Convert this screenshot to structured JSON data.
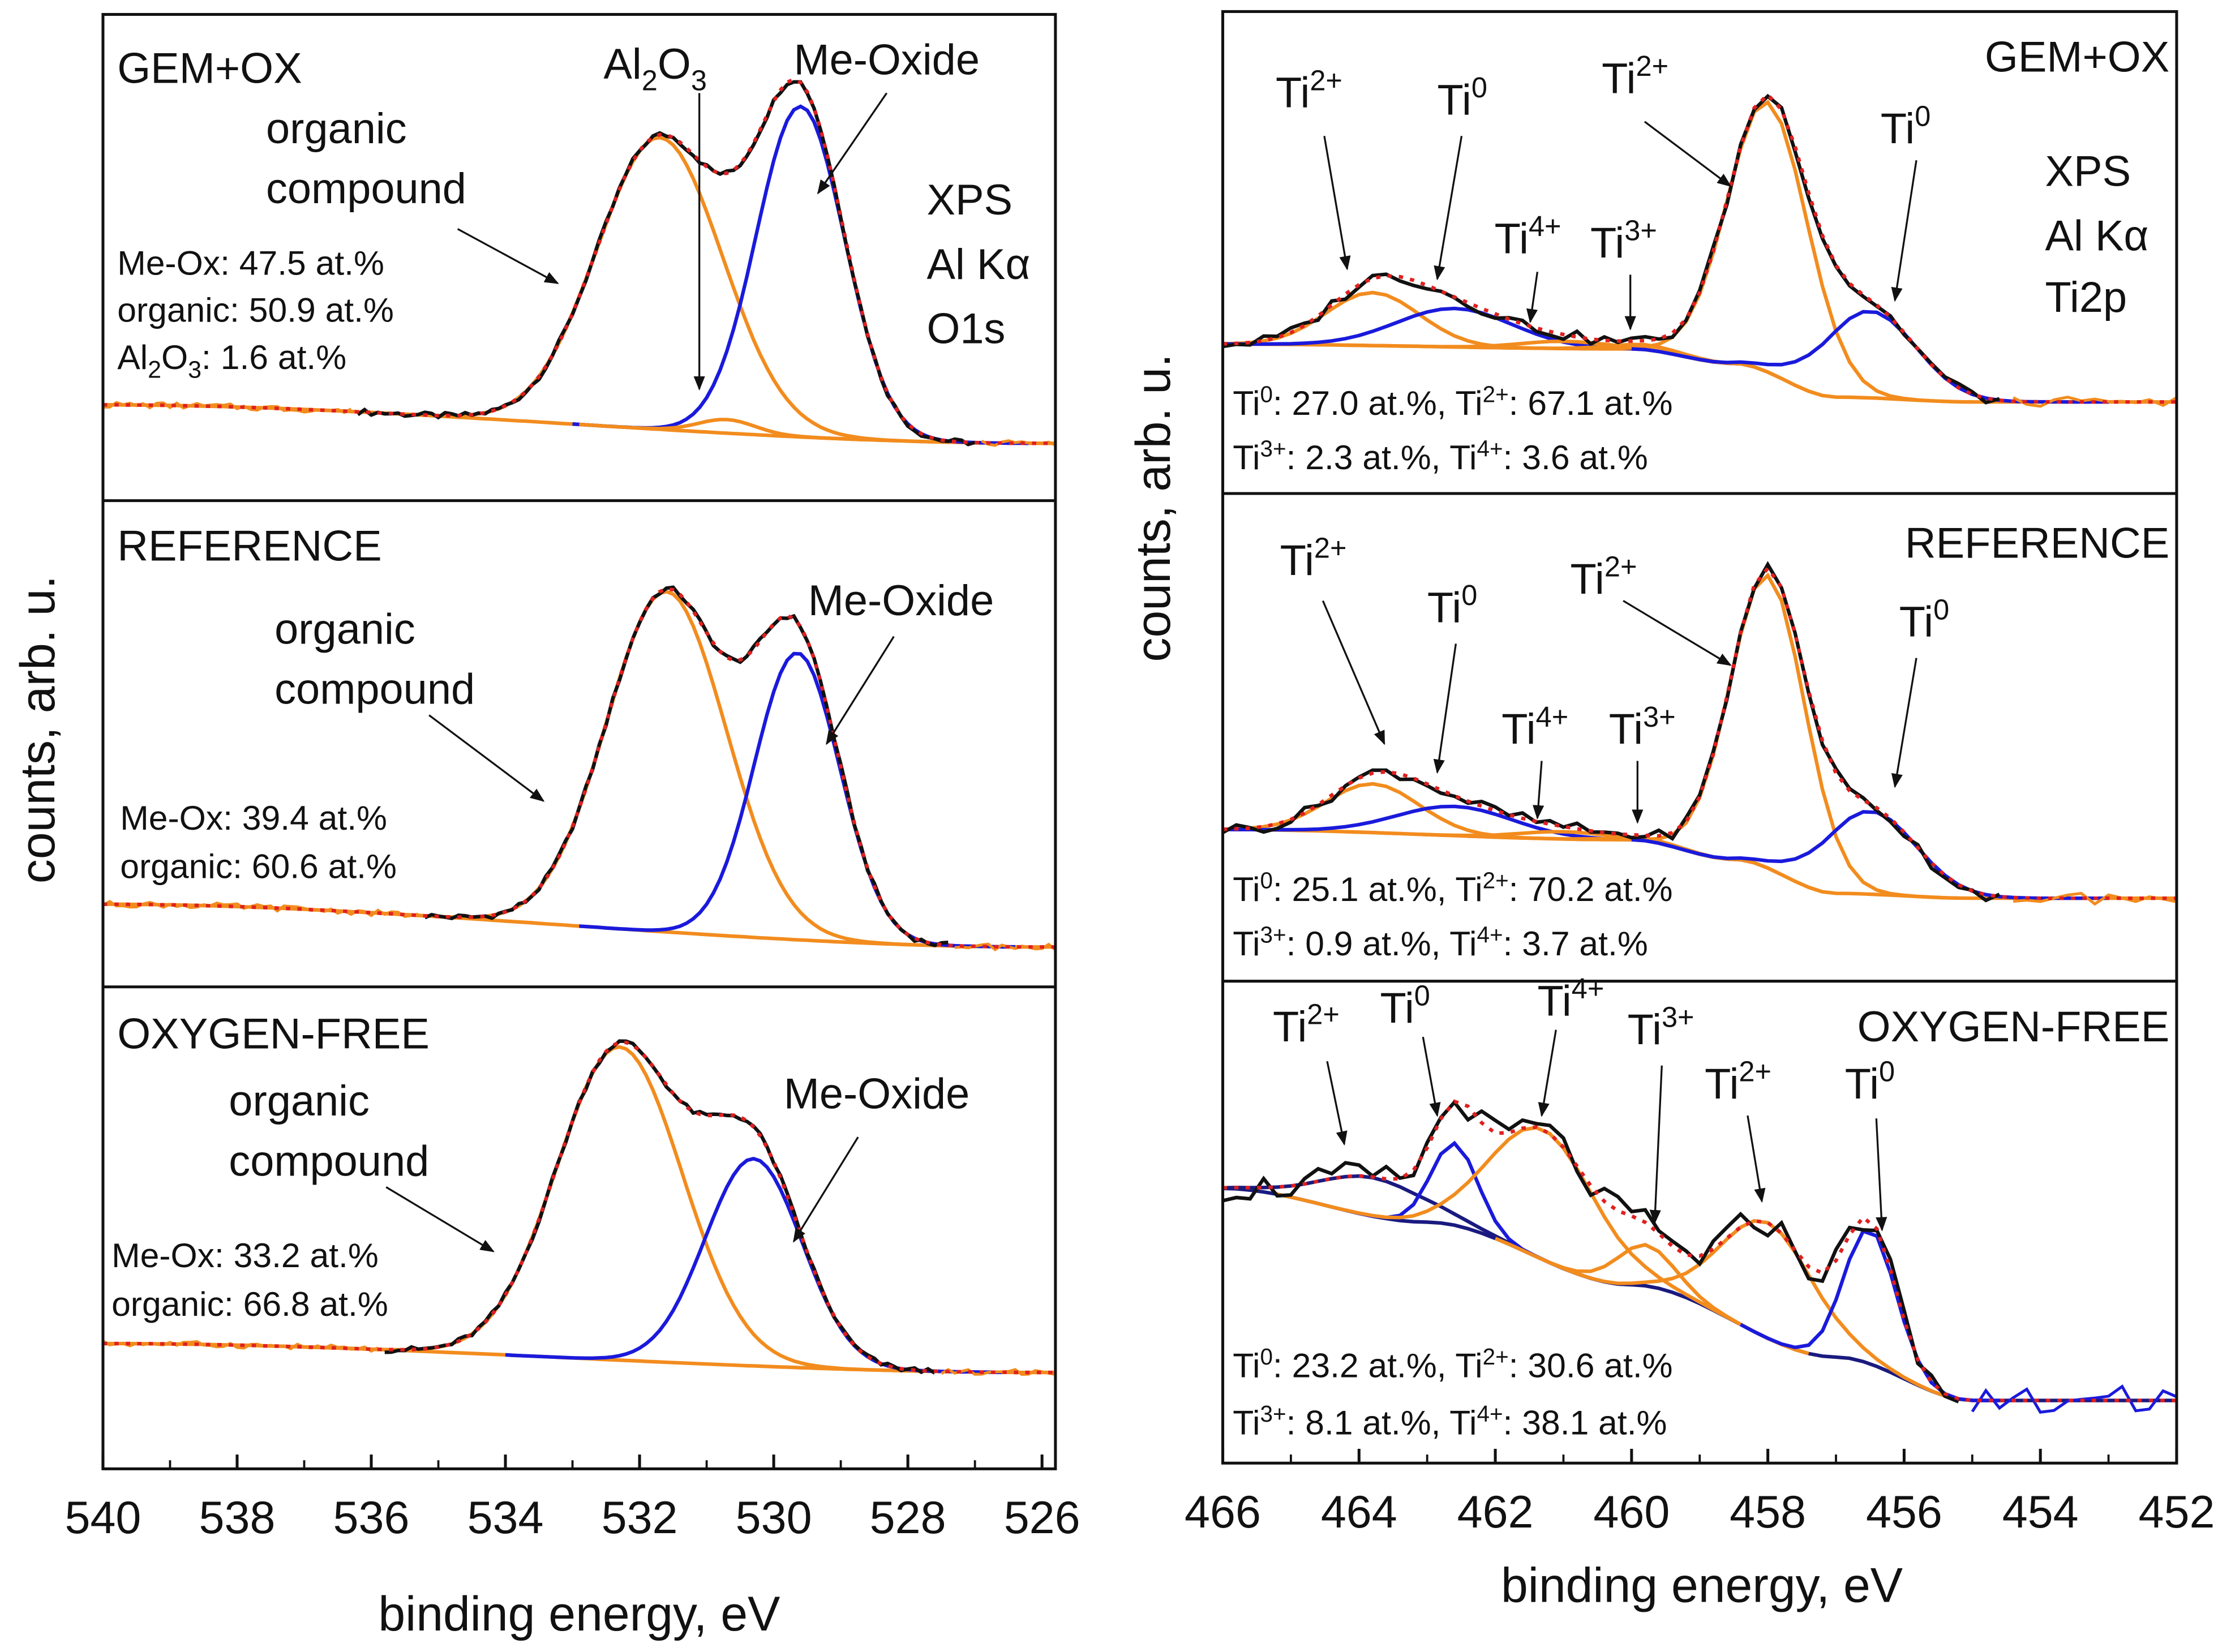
{
  "chart_data": [
    {
      "type": "line",
      "title": "XPS O1s",
      "xlabel": "binding energy, eV",
      "ylabel": "counts, arb. u.",
      "xlim": [
        540,
        525.8
      ],
      "xticks": [
        540,
        538,
        536,
        534,
        532,
        530,
        528,
        526
      ],
      "y_units": "normalized counts per subplot (0-1)",
      "annotation": [
        "XPS",
        "Al Kα",
        "O1s"
      ],
      "subplots": [
        {
          "name": "GEM+OX",
          "measured_range": [
            536.2,
            527.0
          ],
          "background": [
            [
              540,
              0.197
            ],
            [
              526,
              0.118
            ]
          ],
          "components": [
            {
              "label": "organic compound",
              "center": 531.7,
              "amplitude": 0.6,
              "fwhm": 2.2,
              "color": "#f28c1e"
            },
            {
              "label": "Me-Oxide",
              "center": 529.6,
              "amplitude": 0.68,
              "fwhm": 1.55,
              "color": "#1a1adc"
            },
            {
              "label": "Al2O3",
              "center": 530.7,
              "amplitude": 0.028,
              "fwhm": 1.0,
              "color": "#f28c1e"
            }
          ],
          "composition": [
            "Me-Ox: 47.5 at.%",
            "organic: 50.9 at.%",
            "1.6 at.%"
          ]
        },
        {
          "name": "REFERENCE",
          "measured_range": [
            535.2,
            527.4
          ],
          "background": [
            [
              540,
              0.17
            ],
            [
              526,
              0.082
            ]
          ],
          "components": [
            {
              "label": "organic compound",
              "center": 531.6,
              "amplitude": 0.7,
              "fwhm": 2.1,
              "color": "#f28c1e"
            },
            {
              "label": "Me-Oxide",
              "center": 529.65,
              "amplitude": 0.59,
              "fwhm": 1.5,
              "color": "#1a1adc"
            }
          ],
          "composition": [
            "Me-Ox: 39.4 at.%",
            "organic: 60.6 at.%"
          ]
        },
        {
          "name": "OXYGEN-FREE",
          "measured_range": [
            535.8,
            527.6
          ],
          "background": [
            [
              540,
              0.26
            ],
            [
              526,
              0.2
            ]
          ],
          "components": [
            {
              "label": "organic compound",
              "center": 532.3,
              "amplitude": 0.65,
              "fwhm": 2.2,
              "color": "#f28c1e"
            },
            {
              "label": "Me-Oxide",
              "center": 530.3,
              "amplitude": 0.43,
              "fwhm": 1.7,
              "color": "#1a1adc"
            }
          ],
          "composition": [
            "Me-Ox: 33.2 at.%",
            "organic: 66.8 at.%"
          ]
        }
      ]
    },
    {
      "type": "line",
      "title": "XPS Ti2p",
      "xlabel": "binding energy, eV",
      "ylabel": "counts, arb. u.",
      "xlim": [
        466,
        452
      ],
      "xticks": [
        466,
        464,
        462,
        460,
        458,
        456,
        454,
        452
      ],
      "y_units": "normalized counts per subplot (0-1)",
      "annotation": [
        "XPS",
        "Al Kα",
        "Ti2p"
      ],
      "subplots": [
        {
          "name": "GEM+OX",
          "measured_range": [
            466,
            454.6
          ],
          "background": [
            [
              466,
              0.31
            ],
            [
              460,
              0.3
            ],
            [
              458.5,
              0.27
            ],
            [
              457,
              0.2
            ],
            [
              455,
              0.19
            ],
            [
              452,
              0.19
            ]
          ],
          "background_color": "#f28c1e",
          "components": [
            {
              "label": "Ti2+",
              "center": 463.8,
              "amplitude": 0.11,
              "fwhm": 1.6,
              "color": "#f28c1e"
            },
            {
              "label": "Ti0",
              "center": 462.6,
              "amplitude": 0.08,
              "fwhm": 2.0,
              "color": "#1a1adc"
            },
            {
              "label": "Ti4+",
              "center": 461.0,
              "amplitude": 0.015,
              "fwhm": 1.5,
              "color": "#f28c1e"
            },
            {
              "label": "Ti3+",
              "center": 459.8,
              "amplitude": 0.01,
              "fwhm": 1.2,
              "color": "#f28c1e"
            },
            {
              "label": "Ti2+",
              "center": 458.0,
              "amplitude": 0.56,
              "fwhm": 1.4,
              "color": "#f28c1e"
            },
            {
              "label": "Ti0",
              "center": 456.5,
              "amplitude": 0.18,
              "fwhm": 1.6,
              "color": "#1a1adc"
            }
          ],
          "composition": [
            [
              {
                "t": "Ti"
              },
              {
                "sup": "0"
              },
              {
                "t": ": 27.0 at.%, Ti"
              },
              {
                "sup": "2+"
              },
              {
                "t": ": 67.1 at.%"
              }
            ],
            [
              {
                "t": "Ti"
              },
              {
                "sup": "3+"
              },
              {
                "t": ": 2.3 at.%, Ti"
              },
              {
                "sup": "4+"
              },
              {
                "t": ": 3.6  at.%"
              }
            ]
          ]
        },
        {
          "name": "REFERENCE",
          "measured_range": [
            466,
            454.6
          ],
          "background": [
            [
              466,
              0.311
            ],
            [
              460,
              0.29
            ],
            [
              458.5,
              0.25
            ],
            [
              457,
              0.18
            ],
            [
              455,
              0.17
            ],
            [
              452,
              0.17
            ]
          ],
          "background_color": "#f28c1e",
          "components": [
            {
              "label": "Ti2+",
              "center": 463.8,
              "amplitude": 0.1,
              "fwhm": 1.6,
              "color": "#f28c1e"
            },
            {
              "label": "Ti0",
              "center": 462.6,
              "amplitude": 0.06,
              "fwhm": 2.0,
              "color": "#1a1adc"
            },
            {
              "label": "Ti4+",
              "center": 461.0,
              "amplitude": 0.015,
              "fwhm": 1.5,
              "color": "#f28c1e"
            },
            {
              "label": "Ti3+",
              "center": 459.8,
              "amplitude": 0.005,
              "fwhm": 1.2,
              "color": "#f28c1e"
            },
            {
              "label": "Ti2+",
              "center": 458.0,
              "amplitude": 0.6,
              "fwhm": 1.3,
              "color": "#f28c1e"
            },
            {
              "label": "Ti0",
              "center": 456.5,
              "amplitude": 0.17,
              "fwhm": 1.6,
              "color": "#1a1adc"
            }
          ],
          "composition": [
            [
              {
                "t": "Ti"
              },
              {
                "sup": "0"
              },
              {
                "t": ": 25.1 at.%, Ti"
              },
              {
                "sup": "2+"
              },
              {
                "t": ": 70.2 at.%"
              }
            ],
            [
              {
                "t": "Ti"
              },
              {
                "sup": "3+"
              },
              {
                "t": ": 0.9 at.%, Ti"
              },
              {
                "sup": "4+"
              },
              {
                "t": ": 3.7  at.%"
              }
            ]
          ]
        },
        {
          "name": "OXYGEN-FREE",
          "measured_range": [
            466,
            455.2
          ],
          "background": [
            [
              466,
              0.57
            ],
            [
              463,
              0.5
            ],
            [
              460,
              0.37
            ],
            [
              457,
              0.22
            ],
            [
              455,
              0.13
            ],
            [
              452,
              0.13
            ]
          ],
          "background_color": "#1a1a80",
          "components": [
            {
              "label": "Ti2+",
              "center": 463.8,
              "amplitude": 0.08,
              "fwhm": 1.8,
              "color": "#1a1a80"
            },
            {
              "label": "Ti0",
              "center": 462.6,
              "amplitude": 0.17,
              "fwhm": 0.8,
              "color": "#1a1adc"
            },
            {
              "label": "Ti4+",
              "center": 461.3,
              "amplitude": 0.27,
              "fwhm": 1.8,
              "color": "#f28c1e"
            },
            {
              "label": "Ti3+",
              "center": 459.8,
              "amplitude": 0.085,
              "fwhm": 1.0,
              "color": "#f28c1e"
            },
            {
              "label": "Ti2+",
              "center": 458.0,
              "amplitude": 0.24,
              "fwhm": 1.6,
              "color": "#f28c1e"
            },
            {
              "label": "Ti0",
              "center": 456.5,
              "amplitude": 0.28,
              "fwhm": 0.9,
              "color": "#1a1adc"
            }
          ],
          "composition": [
            [
              {
                "t": "Ti"
              },
              {
                "sup": "0"
              },
              {
                "t": ": 23.2 at.%, Ti"
              },
              {
                "sup": "2+"
              },
              {
                "t": ": 30.6 at.%"
              }
            ],
            [
              {
                "t": "Ti"
              },
              {
                "sup": "3+"
              },
              {
                "t": ": 8.1 at.%, Ti"
              },
              {
                "sup": "4+"
              },
              {
                "t": ": 38.1  at.%"
              }
            ]
          ]
        }
      ]
    }
  ],
  "labels": {
    "organic": "organic",
    "compound": "compound",
    "me_oxide": "Me-Oxide",
    "al2o3_base": "Al",
    "al2o3_sub1": "2",
    "al2o3_mid": "O",
    "al2o3_sub2": "3",
    "al2o3_stat_tail": ": 1.6 at.%",
    "ti": "Ti",
    "s0": "0",
    "s2": "2+",
    "s3": "3+",
    "s4": "4+"
  },
  "colors": {
    "organic": "#f28c1e",
    "oxide": "#1a1adc",
    "measured": "#111111",
    "envelope": "#e02020"
  }
}
